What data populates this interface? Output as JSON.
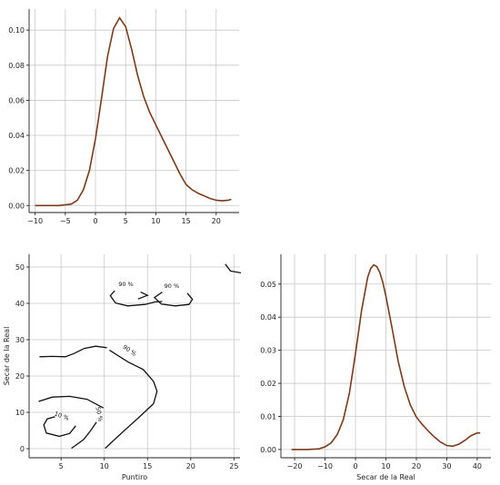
{
  "chart_data": [
    {
      "type": "line",
      "panel": "top-left",
      "x": [
        -10,
        -8,
        -6,
        -4,
        -3,
        -2,
        -1,
        0,
        1,
        2,
        3,
        4,
        5,
        6,
        7,
        8,
        9,
        10,
        11,
        12,
        13,
        14,
        15,
        16,
        17,
        18,
        19,
        20,
        21,
        22,
        22.5
      ],
      "y": [
        0.0,
        0.0,
        0.0,
        0.0008,
        0.003,
        0.009,
        0.02,
        0.038,
        0.061,
        0.085,
        0.101,
        0.107,
        0.102,
        0.089,
        0.074,
        0.062,
        0.053,
        0.046,
        0.039,
        0.032,
        0.025,
        0.018,
        0.012,
        0.009,
        0.007,
        0.0055,
        0.004,
        0.003,
        0.0027,
        0.003,
        0.0035
      ],
      "xticks": [
        -10,
        -5,
        0,
        5,
        10,
        15,
        20
      ],
      "yticks": [
        0.0,
        0.02,
        0.04,
        0.06,
        0.08,
        0.1
      ],
      "xtick_labels": [
        "−10",
        "−5",
        "0",
        "5",
        "10",
        "15",
        "20"
      ],
      "ytick_labels": [
        "0.00",
        "0.02",
        "0.04",
        "0.06",
        "0.08",
        "0.10"
      ],
      "xlim": [
        -11,
        23.8
      ],
      "ylim": [
        -0.004,
        0.112
      ],
      "xlabel": "",
      "ylabel": "",
      "grid": true,
      "color": "#7a3b1a"
    },
    {
      "type": "contour",
      "panel": "bottom-left",
      "xlabel": "Puntiro",
      "ylabel": "Secar de la Real",
      "xticks": [
        5,
        10,
        15,
        20,
        25
      ],
      "yticks": [
        0,
        10,
        20,
        30,
        40,
        50
      ],
      "xtick_labels": [
        "5",
        "10",
        "15",
        "20",
        "25"
      ],
      "ytick_labels": [
        "0",
        "10",
        "20",
        "30",
        "40",
        "50"
      ],
      "xlim": [
        1.3,
        25.7
      ],
      "ylim": [
        -2.5,
        53.5
      ],
      "grid": true,
      "contour_labels": [
        "90 %",
        "90 %",
        "90 %",
        "10 %",
        "50 %"
      ],
      "contours": [
        {
          "points": [
            [
              2.5,
              25.3
            ],
            [
              4,
              25.4
            ],
            [
              5.5,
              25.3
            ],
            [
              6.5,
              26.2
            ],
            [
              7.7,
              27.6
            ],
            [
              9,
              28.2
            ],
            [
              10.3,
              27.8
            ]
          ]
        },
        {
          "points": [
            [
              10.6,
              27.1
            ],
            [
              12.8,
              23.8
            ],
            [
              14.5,
              21.8
            ],
            [
              15.7,
              18.5
            ],
            [
              16.1,
              15.8
            ],
            [
              15.7,
              12.4
            ],
            [
              14,
              8.6
            ],
            [
              12,
              4.3
            ],
            [
              10.1,
              0.1
            ]
          ]
        },
        {
          "points": [
            [
              2.4,
              13
            ],
            [
              4,
              14.2
            ],
            [
              6,
              14.4
            ],
            [
              8,
              13.6
            ],
            [
              9.9,
              11.2
            ]
          ]
        },
        {
          "points": [
            [
              4.3,
              8.8
            ],
            [
              3.4,
              8.2
            ],
            [
              3,
              6.5
            ],
            [
              3.3,
              4.3
            ],
            [
              4.8,
              3.4
            ],
            [
              6,
              4.2
            ],
            [
              6.7,
              6.3
            ]
          ]
        },
        {
          "points": [
            [
              6.2,
              0.1
            ],
            [
              7.6,
              2.5
            ],
            [
              8.4,
              4.9
            ],
            [
              9.1,
              7.3
            ]
          ]
        },
        {
          "points": [
            [
              11.2,
              43.5
            ],
            [
              10.7,
              42.1
            ],
            [
              11.3,
              40.1
            ],
            [
              12.7,
              39.3
            ],
            [
              14.7,
              39.7
            ],
            [
              15.9,
              40.4
            ],
            [
              16.7,
              40.5
            ]
          ]
        },
        {
          "points": [
            [
              14.2,
              43.1
            ],
            [
              15,
              42.2
            ],
            [
              13.9,
              41.2
            ]
          ]
        },
        {
          "points": [
            [
              16.7,
              43.1
            ],
            [
              15.8,
              41.6
            ],
            [
              16.6,
              39.8
            ],
            [
              18.2,
              39.3
            ],
            [
              19.8,
              39.7
            ],
            [
              20.2,
              41.1
            ],
            [
              19.6,
              42.8
            ]
          ]
        },
        {
          "points": [
            [
              24,
              50.8
            ],
            [
              24.6,
              48.9
            ],
            [
              25.8,
              48.4
            ]
          ]
        }
      ]
    },
    {
      "type": "line",
      "panel": "bottom-right",
      "x": [
        -21,
        -16,
        -12,
        -10,
        -8,
        -6,
        -4,
        -2,
        0,
        2,
        4,
        5,
        6,
        7,
        8,
        9,
        10,
        12,
        14,
        16,
        18,
        20,
        22,
        24,
        26,
        28,
        30,
        32,
        34,
        36,
        38,
        40,
        41
      ],
      "y": [
        0.0,
        0.0,
        0.0002,
        0.0008,
        0.002,
        0.0045,
        0.009,
        0.017,
        0.029,
        0.042,
        0.052,
        0.0547,
        0.0558,
        0.0553,
        0.0535,
        0.0505,
        0.0463,
        0.0368,
        0.0268,
        0.0191,
        0.0135,
        0.0098,
        0.0075,
        0.0055,
        0.0037,
        0.0022,
        0.0012,
        0.001,
        0.0016,
        0.0028,
        0.0042,
        0.005,
        0.005
      ],
      "xticks": [
        -20,
        -10,
        0,
        10,
        20,
        30,
        40
      ],
      "yticks": [
        0.0,
        0.01,
        0.02,
        0.03,
        0.04,
        0.05
      ],
      "xtick_labels": [
        "−20",
        "−10",
        "0",
        "10",
        "20",
        "30",
        "40"
      ],
      "ytick_labels": [
        "0.00",
        "0.01",
        "0.02",
        "0.03",
        "0.04",
        "0.05"
      ],
      "xlim": [
        -24.5,
        44.5
      ],
      "ylim": [
        -0.0025,
        0.059
      ],
      "xlabel": "Secar de la Real",
      "ylabel": "",
      "grid": true,
      "color": "#7a3b1a"
    }
  ]
}
